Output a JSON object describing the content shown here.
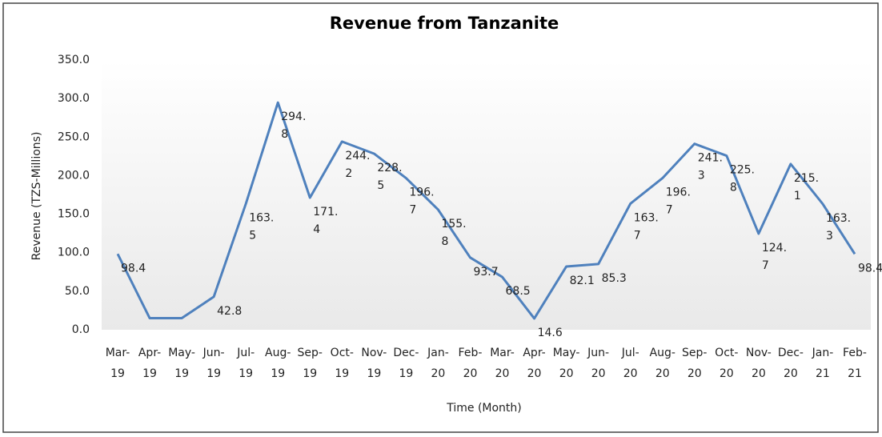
{
  "chart_data": {
    "type": "line",
    "title": "Revenue from Tanzanite",
    "xlabel": "Time (Month)",
    "ylabel": "Revenue (TZS-Millions)",
    "categories": [
      "Mar-19",
      "Apr-19",
      "May-19",
      "Jun-19",
      "Jul-19",
      "Aug-19",
      "Sep-19",
      "Oct-19",
      "Nov-19",
      "Dec-19",
      "Jan-20",
      "Feb-20",
      "Mar-20",
      "Apr-20",
      "May-20",
      "Jun-20",
      "Jul-20",
      "Aug-20",
      "Sep-20",
      "Oct-20",
      "Nov-20",
      "Dec-20",
      "Jan-21",
      "Feb-21"
    ],
    "series": [
      {
        "name": "Revenue",
        "color": "#4f81bd",
        "values": [
          98.4,
          15,
          15,
          42.8,
          163.5,
          294.8,
          171.4,
          244.2,
          228.5,
          196.7,
          155.8,
          93.7,
          68.5,
          14.6,
          82.1,
          85.3,
          163.7,
          196.7,
          241.3,
          225.8,
          124.7,
          215.1,
          163.3,
          98.4
        ],
        "value_labels": [
          "98.4",
          null,
          null,
          "42.8",
          "163.5",
          "294.8",
          "171.4",
          "244.2",
          "228.5",
          "196.7",
          "155.8",
          "93.7",
          "68.5",
          "14.6",
          "82.1",
          "85.3",
          "163.7",
          "196.7",
          "241.3",
          "225.8",
          "124.7",
          "215.1",
          "163.3",
          "98.4"
        ]
      }
    ],
    "ylim": [
      0,
      350
    ],
    "yticks": [
      {
        "value": 0,
        "label": "0.0"
      },
      {
        "value": 50,
        "label": "50.0"
      },
      {
        "value": 100,
        "label": "100.0"
      },
      {
        "value": 150,
        "label": "150.0"
      },
      {
        "value": 200,
        "label": "200.0"
      },
      {
        "value": 250,
        "label": "250.0"
      },
      {
        "value": 300,
        "label": "300.0"
      },
      {
        "value": 350,
        "label": "350.0"
      }
    ],
    "grid": false
  }
}
